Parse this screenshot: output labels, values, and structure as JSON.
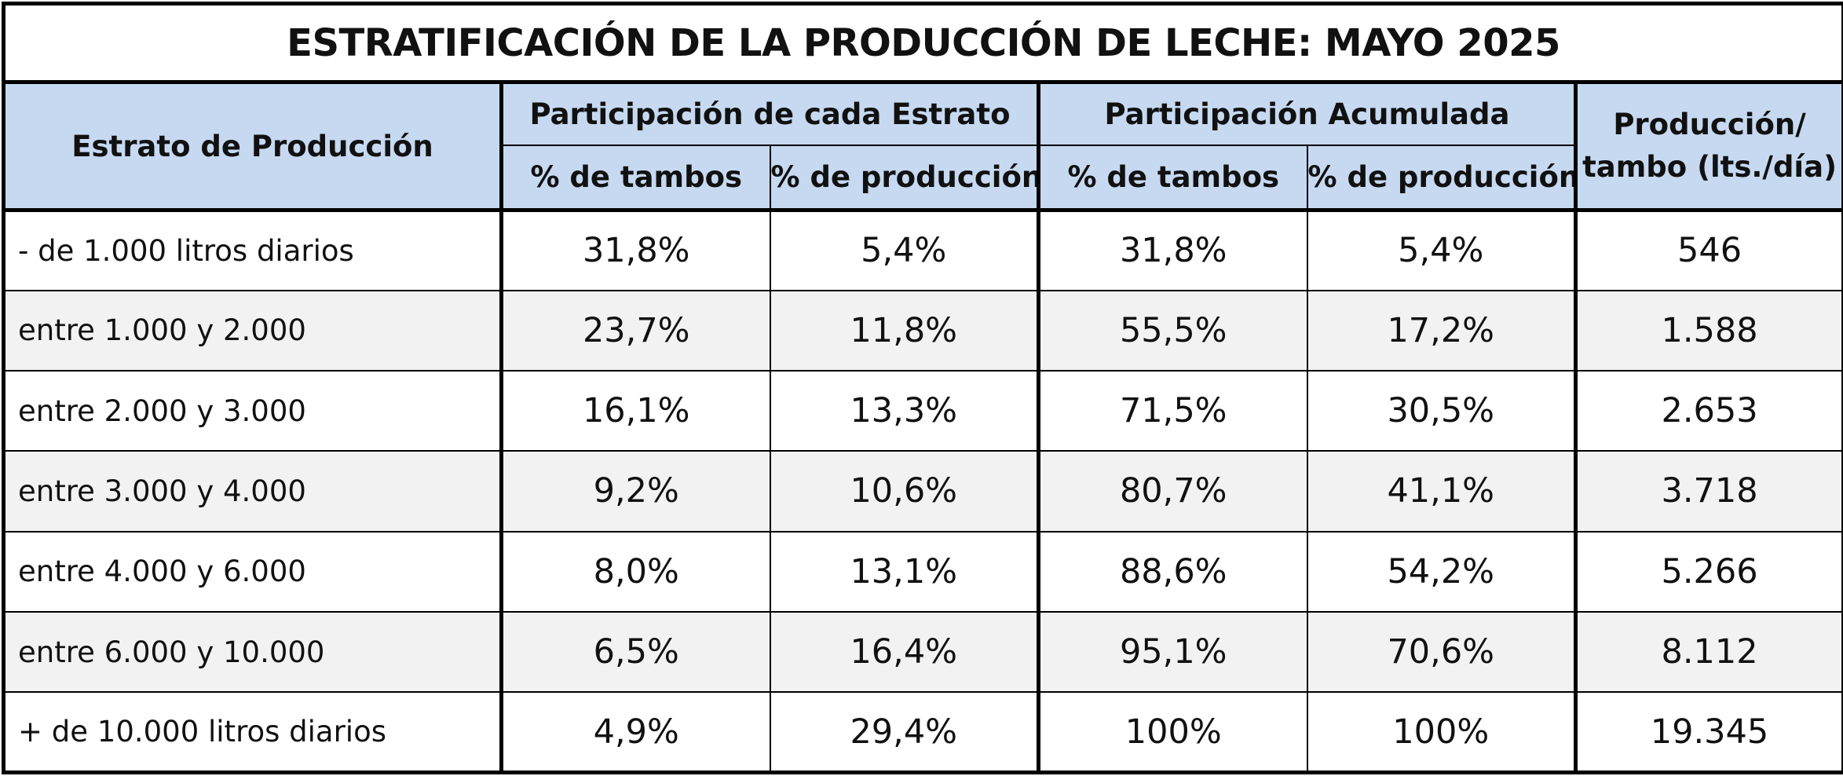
{
  "title": "ESTRATIFICACIÓN DE LA PRODUCCIÓN DE LECHE: MAYO 2025",
  "header": {
    "strata": "Estrato de Producción",
    "group_each": "Participación de cada Estrato",
    "group_cumulative": "Participación Acumulada",
    "per_farm": "Producción/ tambo (lts./día)",
    "sub_farms": "% de tambos",
    "sub_production": "% de producción"
  },
  "rows": [
    {
      "label": "- de 1.000 litros diarios",
      "farms_pct": "31,8%",
      "prod_pct": "5,4%",
      "cum_farms_pct": "31,8%",
      "cum_prod_pct": "5,4%",
      "per_farm": "546"
    },
    {
      "label": "entre 1.000 y 2.000",
      "farms_pct": "23,7%",
      "prod_pct": "11,8%",
      "cum_farms_pct": "55,5%",
      "cum_prod_pct": "17,2%",
      "per_farm": "1.588"
    },
    {
      "label": "entre 2.000 y 3.000",
      "farms_pct": "16,1%",
      "prod_pct": "13,3%",
      "cum_farms_pct": "71,5%",
      "cum_prod_pct": "30,5%",
      "per_farm": "2.653"
    },
    {
      "label": "entre 3.000 y 4.000",
      "farms_pct": "9,2%",
      "prod_pct": "10,6%",
      "cum_farms_pct": "80,7%",
      "cum_prod_pct": "41,1%",
      "per_farm": "3.718"
    },
    {
      "label": "entre 4.000 y 6.000",
      "farms_pct": "8,0%",
      "prod_pct": "13,1%",
      "cum_farms_pct": "88,6%",
      "cum_prod_pct": "54,2%",
      "per_farm": "5.266"
    },
    {
      "label": "entre 6.000 y 10.000",
      "farms_pct": "6,5%",
      "prod_pct": "16,4%",
      "cum_farms_pct": "95,1%",
      "cum_prod_pct": "70,6%",
      "per_farm": "8.112"
    },
    {
      "label": "+ de 10.000 litros diarios",
      "farms_pct": "4,9%",
      "prod_pct": "29,4%",
      "cum_farms_pct": "100%",
      "cum_prod_pct": "100%",
      "per_farm": "19.345"
    }
  ],
  "colors": {
    "header_bg": "#c6d9f1",
    "row_alt_bg": "#f2f2f2",
    "border": "#000000"
  }
}
